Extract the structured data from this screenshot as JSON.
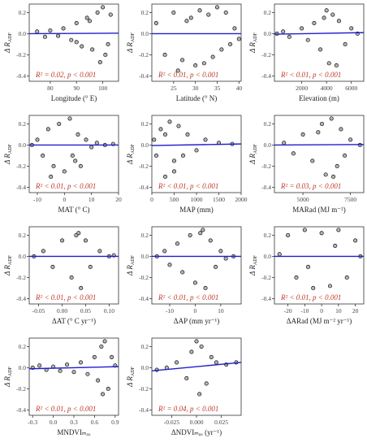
{
  "chart_data": [
    {
      "type": "scatter",
      "x_label": "Longitude (° E)",
      "y_label": "Δ R",
      "y_label_sub": "ADF",
      "annotation": "R² = 0.02, p < 0.001",
      "color": "#b5b5b5",
      "fit_color": "#1f1fcc",
      "x": [
        75,
        78,
        80,
        83,
        85,
        88,
        90,
        92,
        94,
        96,
        98,
        100,
        101,
        103,
        90,
        95,
        99,
        102
      ],
      "values": [
        0.02,
        -0.03,
        0.03,
        -0.02,
        0.05,
        -0.06,
        0.1,
        -0.12,
        0.15,
        -0.15,
        0.2,
        0.25,
        -0.2,
        0.18,
        -0.08,
        0.12,
        -0.27,
        -0.1
      ],
      "fit": {
        "x": [
          72,
          106
        ],
        "values": [
          0.0,
          0.005
        ]
      },
      "xlim": [
        72,
        106
      ],
      "xticks": [
        80,
        90,
        100
      ],
      "ylim": [
        -0.45,
        0.28
      ],
      "yticks": [
        -0.4,
        -0.2,
        {
          "value": 0,
          "label": "0.0"
        },
        0.2
      ]
    },
    {
      "type": "scatter",
      "x_label": "Latitude (° N)",
      "y_label": "Δ R",
      "y_label_sub": "ADF",
      "annotation": "R² < 0.01, p < 0.001",
      "color": "#b5b5b5",
      "fit_color": "#1f1fcc",
      "x": [
        21,
        23,
        25,
        27,
        28,
        30,
        31,
        32,
        33,
        34,
        35,
        36,
        37,
        38,
        39,
        40,
        29,
        26
      ],
      "values": [
        0.1,
        -0.2,
        0.2,
        -0.25,
        0.12,
        -0.3,
        0.22,
        -0.28,
        0.18,
        -0.22,
        0.25,
        -0.15,
        0.2,
        -0.1,
        0.05,
        -0.05,
        0.15,
        -0.35
      ],
      "fit": {
        "x": [
          20,
          40.5
        ],
        "values": [
          0.0,
          0.0
        ]
      },
      "xlim": [
        20,
        40.5
      ],
      "xticks": [
        25,
        30,
        35,
        40
      ],
      "ylim": [
        -0.45,
        0.28
      ],
      "yticks": [
        -0.4,
        -0.2,
        {
          "value": 0,
          "label": "0.0"
        },
        0.2
      ]
    },
    {
      "type": "scatter",
      "x_label": "Elevation (m)",
      "y_label": "Δ R",
      "y_label_sub": "ADF",
      "annotation": "R² < 0.01, p < 0.001",
      "color": "#b5b5b5",
      "fit_color": "#1f1fcc",
      "x": [
        0,
        500,
        1000,
        2000,
        2500,
        3000,
        3500,
        4000,
        4200,
        4500,
        4800,
        5000,
        5500,
        6000,
        6500,
        3800
      ],
      "values": [
        0.0,
        0.02,
        -0.03,
        0.05,
        -0.06,
        0.1,
        -0.15,
        0.22,
        -0.28,
        0.18,
        -0.3,
        0.12,
        -0.1,
        0.05,
        0.0,
        0.15
      ],
      "fit": {
        "x": [
          -200,
          7000
        ],
        "values": [
          -0.005,
          0.01
        ]
      },
      "xlim": [
        -200,
        7000
      ],
      "xticks": [
        2000,
        4000,
        6000
      ],
      "ylim": [
        -0.45,
        0.28
      ],
      "yticks": [
        -0.4,
        -0.2,
        {
          "value": 0,
          "label": "0.0"
        },
        0.2
      ]
    },
    {
      "type": "scatter",
      "x_label": "MAT (° C)",
      "y_label": "Δ R",
      "y_label_sub": "ADF",
      "annotation": "R² < 0.01, p < 0.001",
      "color": "#b5b5b5",
      "fit_color": "#1f1fcc",
      "x": [
        -12,
        -10,
        -8,
        -6,
        -4,
        -2,
        0,
        2,
        4,
        5,
        6,
        8,
        10,
        12,
        15,
        18,
        -5,
        3
      ],
      "values": [
        0.0,
        0.05,
        -0.1,
        0.15,
        -0.2,
        0.2,
        -0.25,
        0.25,
        -0.15,
        0.1,
        -0.2,
        0.05,
        -0.02,
        0.02,
        0.0,
        0.01,
        -0.3,
        -0.1
      ],
      "fit": {
        "x": [
          -13,
          20
        ],
        "values": [
          0.0,
          0.0
        ]
      },
      "xlim": [
        -13,
        20
      ],
      "xticks": [
        -10,
        0,
        10,
        20
      ],
      "ylim": [
        -0.45,
        0.28
      ],
      "yticks": [
        -0.4,
        -0.2,
        {
          "value": 0,
          "label": "0.0"
        },
        0.2
      ]
    },
    {
      "type": "scatter",
      "x_label": "MAP (mm)",
      "y_label": "Δ R",
      "y_label_sub": "ADF",
      "annotation": "R² < 0.01, p < 0.001",
      "color": "#b5b5b5",
      "fit_color": "#1f1fcc",
      "x": [
        50,
        100,
        200,
        300,
        400,
        500,
        600,
        700,
        800,
        1000,
        1200,
        1500,
        1800,
        300,
        500
      ],
      "values": [
        0.05,
        -0.1,
        0.15,
        -0.3,
        0.22,
        -0.25,
        0.18,
        -0.1,
        0.1,
        -0.05,
        0.05,
        0.02,
        0.01,
        0.1,
        -0.15
      ],
      "fit": {
        "x": [
          0,
          2000
        ],
        "values": [
          -0.005,
          0.01
        ]
      },
      "xlim": [
        0,
        2000
      ],
      "xticks": [
        0,
        500,
        1000,
        1500,
        2000
      ],
      "ylim": [
        -0.45,
        0.28
      ],
      "yticks": [
        -0.4,
        -0.2,
        {
          "value": 0,
          "label": "0.0"
        },
        0.2
      ]
    },
    {
      "type": "scatter",
      "x_label": "MARad (MJ m⁻²)",
      "y_label": "Δ R",
      "y_label_sub": "ADF",
      "annotation": "R² = 0.03, p < 0.001",
      "color": "#b5b5b5",
      "fit_color": "#1f1fcc",
      "x": [
        4000,
        4500,
        5000,
        5500,
        6000,
        6200,
        6500,
        6800,
        7000,
        7200,
        7500,
        8000,
        5800,
        6600
      ],
      "values": [
        0.02,
        -0.08,
        0.1,
        -0.15,
        0.2,
        -0.28,
        0.25,
        -0.2,
        0.15,
        -0.1,
        0.05,
        0.0,
        0.12,
        -0.3
      ],
      "fit": {
        "x": [
          3500,
          8200
        ],
        "values": [
          0.0,
          0.005
        ]
      },
      "xlim": [
        3500,
        8200
      ],
      "xticks": [
        5000,
        7500
      ],
      "ylim": [
        -0.45,
        0.28
      ],
      "yticks": [
        -0.4,
        -0.2,
        {
          "value": 0,
          "label": "0.0"
        },
        0.2
      ]
    },
    {
      "type": "scatter",
      "x_label": "ΔAT (° C yr⁻¹)",
      "y_label": "Δ R",
      "y_label_sub": "ADF",
      "annotation": "R² < 0.01, p < 0.001",
      "color": "#b5b5b5",
      "fit_color": "#1f1fcc",
      "x": [
        -0.06,
        -0.04,
        -0.02,
        0.0,
        0.02,
        0.03,
        0.04,
        0.05,
        0.06,
        0.08,
        0.1,
        0.11,
        0.035
      ],
      "values": [
        0.0,
        0.05,
        -0.1,
        0.15,
        -0.2,
        0.2,
        -0.3,
        0.15,
        -0.1,
        0.05,
        0.0,
        0.01,
        0.22
      ],
      "fit": {
        "x": [
          -0.07,
          0.12
        ],
        "values": [
          0.0,
          0.0
        ]
      },
      "xlim": [
        -0.07,
        0.12
      ],
      "xticks": [
        -0.05,
        {
          "value": 0,
          "label": "0.00"
        },
        0.05,
        {
          "value": 0.1,
          "label": "0.10"
        }
      ],
      "ylim": [
        -0.45,
        0.28
      ],
      "yticks": [
        -0.4,
        -0.2,
        {
          "value": 0,
          "label": "0.0"
        },
        0.2
      ]
    },
    {
      "type": "scatter",
      "x_label": "ΔAP (mm yr⁻¹)",
      "y_label": "Δ R",
      "y_label_sub": "ADF",
      "annotation": "R² < 0.01, p < 0.001",
      "color": "#b5b5b5",
      "fit_color": "#1f1fcc",
      "x": [
        -15,
        -12,
        -10,
        -7,
        -5,
        -2,
        0,
        2,
        4,
        6,
        8,
        10,
        12,
        15,
        3
      ],
      "values": [
        0.0,
        0.05,
        -0.08,
        0.12,
        -0.15,
        0.2,
        -0.25,
        0.22,
        -0.3,
        0.15,
        -0.1,
        0.05,
        -0.02,
        0.0,
        0.25
      ],
      "fit": {
        "x": [
          -17,
          18
        ],
        "values": [
          0.0,
          0.0
        ]
      },
      "xlim": [
        -17,
        18
      ],
      "xticks": [
        -10,
        0,
        10
      ],
      "ylim": [
        -0.45,
        0.28
      ],
      "yticks": [
        -0.4,
        -0.2,
        {
          "value": 0,
          "label": "0.0"
        },
        0.2
      ]
    },
    {
      "type": "scatter",
      "x_label": "ΔARad (MJ m⁻² yr⁻¹)",
      "y_label": "Δ R",
      "y_label_sub": "ADF",
      "annotation": "R² < 0.01, p < 0.001",
      "color": "#b5b5b5",
      "fit_color": "#1f1fcc",
      "x": [
        -25,
        -20,
        -15,
        -10,
        -5,
        0,
        5,
        10,
        15,
        20,
        23,
        -8,
        8
      ],
      "values": [
        0.02,
        0.2,
        -0.2,
        0.25,
        -0.3,
        0.22,
        -0.28,
        0.25,
        -0.2,
        0.15,
        0.0,
        -0.1,
        0.1
      ],
      "fit": {
        "x": [
          -28,
          25
        ],
        "values": [
          0.0,
          0.0
        ]
      },
      "xlim": [
        -28,
        25
      ],
      "xticks": [
        -20,
        -10,
        0,
        10,
        20
      ],
      "ylim": [
        -0.45,
        0.28
      ],
      "yticks": [
        -0.4,
        -0.2,
        {
          "value": 0,
          "label": "0.0"
        },
        0.2
      ]
    },
    {
      "type": "scatter",
      "x_label": "MNDVIₘₐₓ",
      "y_label": "Δ R",
      "y_label_sub": "ADF",
      "annotation": "R² < 0.01, p < 0.001",
      "color": "#b5b5b5",
      "fit_color": "#1f1fcc",
      "x": [
        -0.3,
        -0.2,
        -0.1,
        0.0,
        0.1,
        0.2,
        0.3,
        0.4,
        0.5,
        0.6,
        0.65,
        0.7,
        0.72,
        0.75,
        0.8,
        0.85,
        0.9
      ],
      "values": [
        0.0,
        0.02,
        -0.02,
        0.01,
        -0.03,
        0.03,
        -0.04,
        0.05,
        -0.06,
        0.1,
        -0.12,
        0.2,
        -0.25,
        0.25,
        -0.2,
        0.1,
        0.02
      ],
      "fit": {
        "x": [
          -0.35,
          0.95
        ],
        "values": [
          -0.01,
          0.01
        ]
      },
      "xlim": [
        -0.35,
        0.95
      ],
      "xticks": [
        -0.3,
        {
          "value": 0,
          "label": "0.0"
        },
        0.3,
        0.6,
        0.9
      ],
      "ylim": [
        -0.45,
        0.28
      ],
      "yticks": [
        -0.4,
        -0.2,
        {
          "value": 0,
          "label": "0.0"
        },
        0.2
      ]
    },
    {
      "type": "scatter",
      "x_label": "ΔNDVIₘₐₓ (yr⁻¹)",
      "y_label": "Δ R",
      "y_label_sub": "ADF",
      "annotation": "R² = 0.04, p < 0.001",
      "color": "#b5b5b5",
      "fit_color": "#1f1fcc",
      "x": [
        -0.04,
        -0.03,
        -0.02,
        -0.01,
        -0.005,
        0.0,
        0.003,
        0.005,
        0.01,
        0.015,
        0.02,
        0.03,
        0.04
      ],
      "values": [
        -0.02,
        0.0,
        0.05,
        -0.1,
        0.15,
        0.25,
        -0.25,
        0.2,
        -0.15,
        0.1,
        0.05,
        0.03,
        0.05
      ],
      "fit": {
        "x": [
          -0.045,
          0.045
        ],
        "values": [
          -0.03,
          0.05
        ]
      },
      "xlim": [
        -0.045,
        0.045
      ],
      "xticks": [
        -0.025,
        {
          "value": 0,
          "label": "0.000"
        },
        0.025
      ],
      "ylim": [
        -0.45,
        0.28
      ],
      "yticks": [
        -0.4,
        -0.2,
        {
          "value": 0,
          "label": "0.0"
        },
        0.2
      ]
    }
  ]
}
